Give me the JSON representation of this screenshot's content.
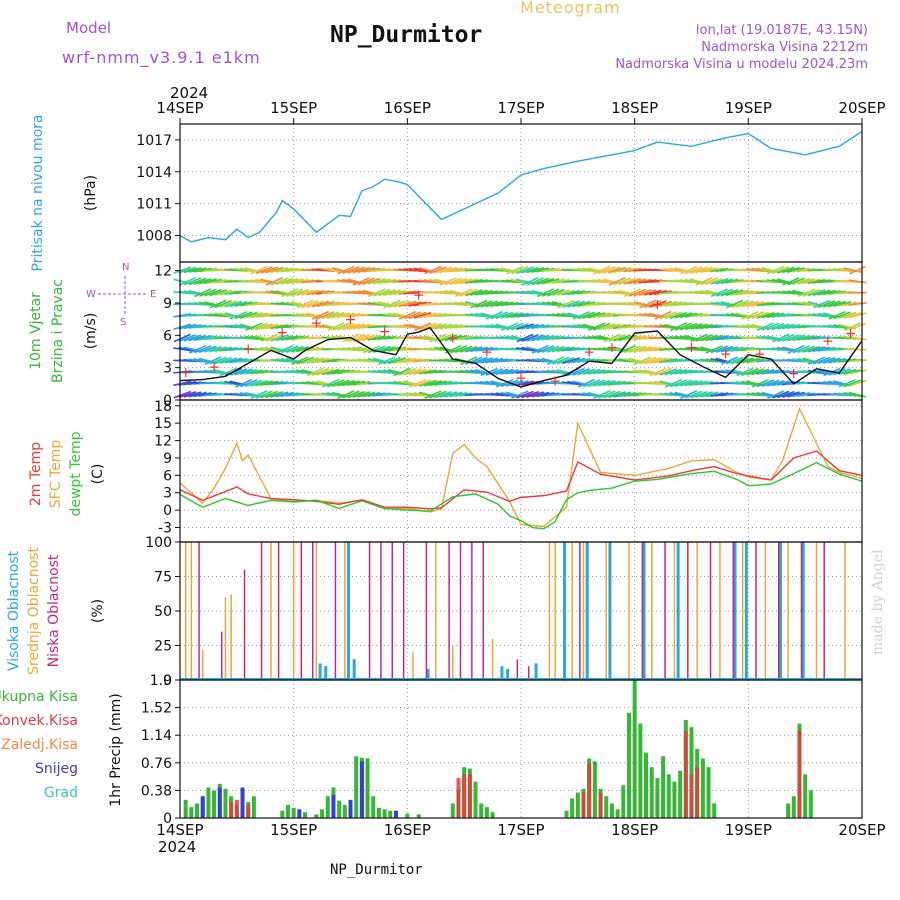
{
  "header": {
    "model_label": "Model",
    "model_name": "wrf-nmm_v3.9.1 e1km",
    "title": "NP_Durmitor",
    "meteogram_label": "Meteogram",
    "lonlat": "lon,lat (19.0187E, 43.15N)",
    "altitude": "Nadmorska Visina 2212m",
    "model_altitude": "Nadmorska Visina u modelu 2024.23m",
    "year": "2024",
    "footer_title": "NP_Durmitor",
    "credit": "made by Angel"
  },
  "colors": {
    "pressure": "#2aa7e3",
    "temp2m": "#ee3a3a",
    "sfc": "#e7a83c",
    "dewpt": "#2fc62f",
    "high_cloud": "#2aa7e3",
    "mid_cloud": "#e7a83c",
    "low_cloud": "#c4287a",
    "total_precip": "#36b836",
    "conv_precip": "#e33c3c",
    "frozen_precip": "#f08a3c",
    "snow": "#3b3bd8",
    "grad": "#3ec3c3",
    "wind_speed": "#111111",
    "wind_gust_marker": "#f03030"
  },
  "chart_data": [
    {
      "type": "line",
      "panel": "pressure",
      "ylabels": [
        "Pritisak na nivou mora",
        "(hPa)"
      ],
      "ylim": [
        1005.5,
        1018.5
      ],
      "yticks": [
        1008,
        1011,
        1014,
        1017
      ],
      "xlabels": [
        "14SEP",
        "15SEP",
        "16SEP",
        "17SEP",
        "18SEP",
        "19SEP",
        "20SEP"
      ],
      "series": [
        {
          "x": [
            0,
            0.1,
            0.25,
            0.4,
            0.5,
            0.6,
            0.7,
            0.85,
            0.9,
            1.0,
            1.2,
            1.4,
            1.5,
            1.6,
            1.7,
            1.8,
            1.9,
            2.0,
            2.3,
            2.5,
            2.8,
            3.0,
            3.2,
            3.5,
            4.0,
            4.2,
            4.5,
            4.8,
            5.0,
            5.2,
            5.5,
            5.8,
            6.0
          ],
          "y": [
            1008.0,
            1007.4,
            1007.8,
            1007.6,
            1008.6,
            1007.8,
            1008.3,
            1010.2,
            1011.3,
            1010.5,
            1008.3,
            1009.9,
            1009.8,
            1012.2,
            1012.6,
            1013.3,
            1013.1,
            1012.8,
            1009.5,
            1010.5,
            1012.0,
            1013.7,
            1014.3,
            1015.0,
            1016.0,
            1016.8,
            1016.4,
            1017.2,
            1017.6,
            1016.2,
            1015.6,
            1016.4,
            1017.8
          ]
        }
      ]
    },
    {
      "type": "line",
      "panel": "wind",
      "ylabels": [
        "10m Vjetar",
        "Brzina i Pravac",
        "(m/s)"
      ],
      "compass": [
        "N",
        "W",
        "E",
        "S"
      ],
      "ylim": [
        0,
        12.8
      ],
      "yticks": [
        0,
        3,
        6,
        9,
        12
      ],
      "series": [
        {
          "name": "speed",
          "x": [
            0,
            0.2,
            0.4,
            0.6,
            0.8,
            1.0,
            1.1,
            1.3,
            1.5,
            1.7,
            1.9,
            2.0,
            2.1,
            2.2,
            2.4,
            2.6,
            2.8,
            3.0,
            3.2,
            3.4,
            3.6,
            3.8,
            4.0,
            4.2,
            4.4,
            4.6,
            4.8,
            5.0,
            5.2,
            5.4,
            5.6,
            5.8,
            6.0
          ],
          "y": [
            1.8,
            1.9,
            2.2,
            3.4,
            4.6,
            3.8,
            4.6,
            5.6,
            5.8,
            4.6,
            4.2,
            6.1,
            6.3,
            6.7,
            3.8,
            3.4,
            2.0,
            1.2,
            1.8,
            2.3,
            3.6,
            3.4,
            6.2,
            6.4,
            4.2,
            3.1,
            2.1,
            4.2,
            3.8,
            1.5,
            2.9,
            2.5,
            5.5
          ]
        },
        {
          "name": "gust",
          "x": [
            0.05,
            0.3,
            0.6,
            0.9,
            1.2,
            1.5,
            1.8,
            2.1,
            2.4,
            2.7,
            3.0,
            3.3,
            3.6,
            3.8,
            4.2,
            4.5,
            4.8,
            5.1,
            5.4,
            5.7,
            5.9
          ],
          "y": [
            2.6,
            3.1,
            4.8,
            6.3,
            7.2,
            7.5,
            6.4,
            9.8,
            5.8,
            4.5,
            2.1,
            1.8,
            4.5,
            4.9,
            8.9,
            4.9,
            4.3,
            4.3,
            2.5,
            5.5,
            6.2
          ]
        }
      ]
    },
    {
      "type": "line",
      "panel": "temperature",
      "ylabels": [
        "2m Temp",
        "SFC Temp",
        "dewpt Temp",
        "(C)"
      ],
      "ylim": [
        -5.5,
        19
      ],
      "yticks": [
        -3,
        0,
        3,
        6,
        9,
        12,
        15,
        18
      ],
      "series": [
        {
          "name": "2m Temp",
          "x": [
            0,
            0.2,
            0.4,
            0.5,
            0.6,
            0.8,
            1.0,
            1.2,
            1.4,
            1.6,
            1.8,
            2.0,
            2.2,
            2.3,
            2.5,
            2.7,
            2.9,
            3.0,
            3.2,
            3.4,
            3.5,
            3.7,
            4.0,
            4.3,
            4.5,
            4.7,
            4.9,
            5.0,
            5.2,
            5.4,
            5.6,
            5.8,
            6.0
          ],
          "y": [
            3.5,
            1.7,
            3.2,
            4.0,
            2.8,
            2.0,
            1.8,
            1.5,
            1.0,
            1.8,
            0.5,
            0.5,
            0.2,
            0.4,
            3.5,
            3.1,
            1.5,
            2.2,
            2.5,
            3.3,
            8.3,
            6.2,
            5.2,
            5.9,
            6.8,
            7.5,
            6.3,
            5.9,
            5.2,
            9.0,
            10.2,
            6.8,
            6.0
          ]
        },
        {
          "name": "SFC Temp",
          "x": [
            0,
            0.2,
            0.3,
            0.4,
            0.5,
            0.55,
            0.6,
            0.8,
            1.0,
            1.2,
            1.4,
            1.6,
            1.8,
            2.0,
            2.2,
            2.3,
            2.4,
            2.5,
            2.6,
            2.7,
            2.9,
            3.0,
            3.2,
            3.4,
            3.5,
            3.7,
            4.0,
            4.3,
            4.5,
            4.7,
            4.9,
            5.0,
            5.2,
            5.3,
            5.45,
            5.55,
            5.7,
            5.8,
            6.0
          ],
          "y": [
            4.7,
            1.2,
            3.8,
            7.2,
            11.5,
            8.5,
            9.5,
            2.0,
            1.5,
            1.7,
            1.2,
            1.7,
            0.2,
            0.3,
            -0.3,
            0.2,
            9.8,
            11.3,
            9.0,
            7.5,
            1.5,
            -2.5,
            -2.8,
            0.5,
            15.0,
            6.5,
            6.0,
            7.2,
            8.5,
            8.7,
            6.5,
            5.7,
            5.2,
            8.5,
            17.5,
            13.5,
            7.5,
            6.5,
            5.5
          ]
        },
        {
          "name": "dewpt Temp",
          "x": [
            0,
            0.2,
            0.4,
            0.6,
            0.8,
            1.0,
            1.2,
            1.4,
            1.6,
            1.8,
            2.0,
            2.2,
            2.4,
            2.6,
            2.8,
            2.9,
            3.0,
            3.1,
            3.2,
            3.3,
            3.4,
            3.5,
            3.6,
            3.8,
            4.0,
            4.2,
            4.5,
            4.7,
            4.9,
            5.0,
            5.2,
            5.4,
            5.6,
            5.8,
            6.0
          ],
          "y": [
            2.7,
            0.5,
            2.0,
            0.8,
            1.7,
            1.4,
            1.7,
            0.3,
            1.6,
            0.3,
            0.0,
            -0.2,
            2.3,
            2.8,
            1.0,
            -1.0,
            -1.8,
            -3.0,
            -3.2,
            -2.0,
            1.8,
            3.0,
            3.4,
            3.8,
            5.0,
            5.3,
            6.3,
            6.7,
            5.3,
            4.2,
            4.5,
            6.3,
            8.2,
            6.2,
            5.0
          ]
        }
      ]
    },
    {
      "type": "bar",
      "panel": "cloud",
      "ylabels": [
        "Visoka Oblacnost",
        "Srednja Oblacnost",
        "Niska Oblacnost",
        "(%)"
      ],
      "ylim": [
        0,
        100
      ],
      "yticks": [
        0,
        25,
        50,
        75,
        100
      ],
      "series": [
        {
          "name": "Visoka Oblacnost",
          "x": [
            1.25,
            1.3,
            1.5,
            1.55,
            2.2,
            2.85,
            2.9,
            3.15,
            3.4,
            3.6,
            3.8,
            4.1,
            4.4,
            4.9,
            5.0,
            5.3,
            5.5
          ],
          "values": [
            12,
            10,
            100,
            15,
            8,
            10,
            8,
            12,
            100,
            100,
            100,
            100,
            100,
            100,
            100,
            100,
            100
          ]
        },
        {
          "name": "Srednja Oblacnost",
          "x": [
            0.05,
            0.1,
            0.2,
            0.4,
            0.45,
            0.8,
            1.0,
            1.2,
            1.45,
            2.05,
            2.25,
            2.4,
            2.75,
            3.25,
            3.3,
            3.45,
            3.55,
            3.75,
            3.95,
            4.15,
            4.35,
            4.55,
            4.75,
            4.95,
            5.15,
            5.35,
            5.6,
            5.85
          ],
          "values": [
            100,
            100,
            22,
            60,
            62,
            100,
            100,
            100,
            100,
            20,
            100,
            25,
            30,
            100,
            100,
            100,
            100,
            100,
            100,
            100,
            100,
            100,
            100,
            100,
            100,
            100,
            100,
            100
          ]
        },
        {
          "name": "Niska Oblacnost",
          "x": [
            0.15,
            0.35,
            0.55,
            0.7,
            0.85,
            1.05,
            1.15,
            1.35,
            1.65,
            1.75,
            1.85,
            1.95,
            2.15,
            2.35,
            2.45,
            2.55,
            2.65,
            2.95,
            3.05,
            3.5,
            4.05,
            4.25,
            4.45,
            4.65,
            4.85,
            5.05,
            5.25,
            5.45,
            5.65
          ],
          "values": [
            100,
            35,
            80,
            100,
            100,
            100,
            100,
            100,
            100,
            100,
            100,
            100,
            100,
            100,
            100,
            100,
            100,
            15,
            10,
            100,
            100,
            100,
            100,
            100,
            100,
            100,
            100,
            100,
            100
          ]
        }
      ]
    },
    {
      "type": "bar",
      "panel": "precip",
      "ylabels": [
        "1hr Precip (mm)"
      ],
      "legend": [
        "Ukupna Kisa",
        "Konvek.Kisa",
        "Zaledj.Kisa",
        "Snijeg",
        "Grad"
      ],
      "ylim": [
        0,
        1.9
      ],
      "yticks": [
        0,
        0.38,
        0.76,
        1.14,
        1.52,
        1.9
      ],
      "series": [
        {
          "name": "Ukupna Kisa",
          "x": [
            0.05,
            0.1,
            0.15,
            0.2,
            0.25,
            0.3,
            0.35,
            0.4,
            0.45,
            0.5,
            0.55,
            0.6,
            0.65,
            0.9,
            0.95,
            1.0,
            1.1,
            1.2,
            1.25,
            1.3,
            1.35,
            1.4,
            1.45,
            1.5,
            1.55,
            1.6,
            1.65,
            1.7,
            1.75,
            1.8,
            1.85,
            1.9,
            2.0,
            2.1,
            2.4,
            2.45,
            2.5,
            2.55,
            2.6,
            2.65,
            2.7,
            2.75,
            3.4,
            3.45,
            3.5,
            3.55,
            3.6,
            3.65,
            3.7,
            3.75,
            3.8,
            3.85,
            3.9,
            3.95,
            4.0,
            4.05,
            4.1,
            4.15,
            4.2,
            4.25,
            4.3,
            4.35,
            4.4,
            4.45,
            4.5,
            4.55,
            4.6,
            4.65,
            4.7,
            5.35,
            5.4,
            5.45,
            5.5,
            5.55
          ],
          "values": [
            0.25,
            0.15,
            0.2,
            0.27,
            0.42,
            0.38,
            0.47,
            0.4,
            0.3,
            0.18,
            0.1,
            0.22,
            0.3,
            0.1,
            0.18,
            0.14,
            0.08,
            0.05,
            0.12,
            0.3,
            0.42,
            0.24,
            0.18,
            0.1,
            0.85,
            0.83,
            0.82,
            0.3,
            0.14,
            0.12,
            0.1,
            0.08,
            0.06,
            0.05,
            0.2,
            0.38,
            0.7,
            0.68,
            0.5,
            0.2,
            0.15,
            0.08,
            0.1,
            0.27,
            0.35,
            0.4,
            0.82,
            0.78,
            0.4,
            0.3,
            0.2,
            0.12,
            0.45,
            1.45,
            1.9,
            1.3,
            0.9,
            0.7,
            0.55,
            0.85,
            0.6,
            0.5,
            0.65,
            1.35,
            1.25,
            0.95,
            0.82,
            0.7,
            0.2,
            0.2,
            0.3,
            1.3,
            0.6,
            0.38
          ]
        },
        {
          "name": "Konvek.Kisa",
          "x": [
            0.45,
            0.5,
            0.6,
            2.45,
            2.5,
            2.55,
            3.55,
            3.6,
            3.7,
            4.45,
            4.5,
            4.55,
            5.45
          ],
          "values": [
            0.22,
            0.25,
            0.18,
            0.55,
            0.6,
            0.6,
            0.35,
            0.75,
            0.35,
            1.2,
            0.6,
            0.7,
            1.2
          ]
        },
        {
          "name": "Snijeg",
          "x": [
            0.2,
            0.35,
            0.55,
            1.05,
            1.35,
            1.5,
            1.6,
            1.9
          ],
          "values": [
            0.3,
            0.42,
            0.42,
            0.12,
            0.32,
            0.25,
            0.78,
            0.1
          ]
        }
      ]
    }
  ]
}
